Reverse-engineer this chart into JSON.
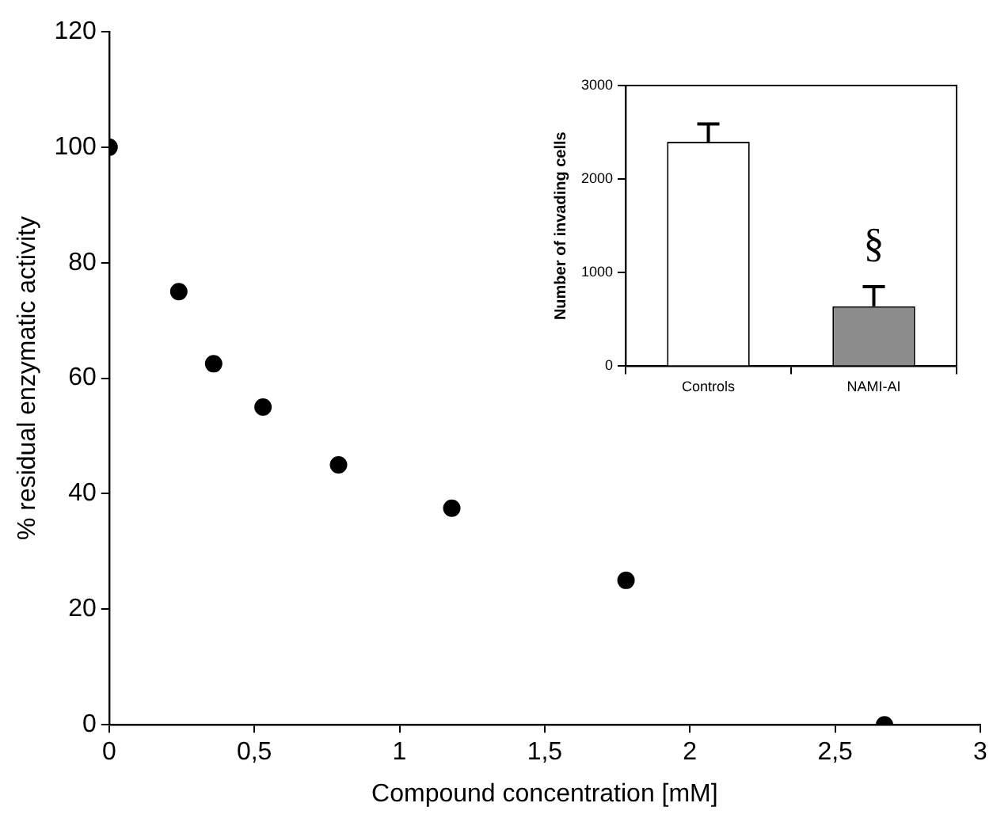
{
  "chart_data": [
    {
      "type": "scatter",
      "xlabel": "Compound concentration [mM]",
      "ylabel": "% residual enzymatic activity",
      "x": [
        0,
        0.24,
        0.36,
        0.53,
        0.79,
        1.18,
        1.78,
        2.67
      ],
      "series": [
        {
          "color": "#000000",
          "values": [
            100,
            75,
            62.5,
            55,
            45,
            37.5,
            25,
            0
          ]
        }
      ],
      "xlim": [
        0,
        3
      ],
      "xticks": [
        0,
        {
          "value": 0.5,
          "label": "0,5"
        },
        1,
        {
          "value": 1.5,
          "label": "1,5"
        },
        2,
        {
          "value": 2.5,
          "label": "2,5"
        },
        3
      ],
      "ylim": [
        0,
        120
      ],
      "yticks": [
        0,
        20,
        40,
        60,
        80,
        100,
        120
      ],
      "grid": false,
      "legend": false,
      "marker": "circle"
    },
    {
      "type": "bar",
      "ylabel": "Number of invading cells",
      "categories": [
        "Controls",
        "NAMI-AI"
      ],
      "series": [
        {
          "colors": [
            "#ffffff",
            "#8c8c8c"
          ],
          "values": [
            2400,
            640
          ],
          "errors": [
            190,
            210
          ]
        }
      ],
      "ylim": [
        0,
        3000
      ],
      "yticks": [
        0,
        1000,
        2000,
        3000
      ],
      "grid": false,
      "legend": false,
      "annotations": [
        "§"
      ]
    }
  ]
}
